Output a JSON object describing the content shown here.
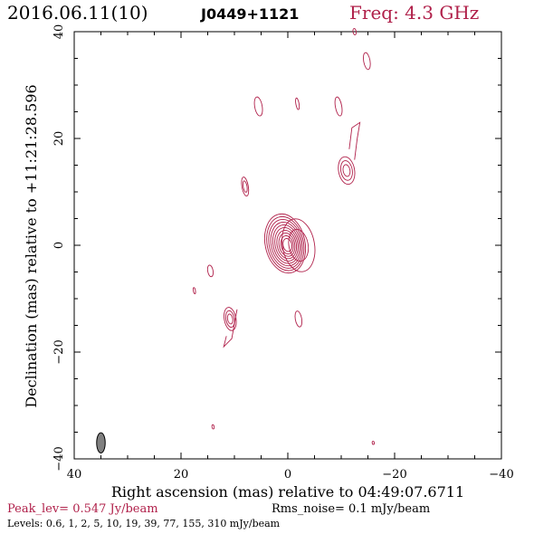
{
  "header": {
    "date": "2016.06.11(10)",
    "source": "J0449+1121",
    "freq": "Freq: 4.3 GHz"
  },
  "footer": {
    "peak": "Peak_lev=  0.547 Jy/beam",
    "rms": "Rms_noise=  0.1 mJy/beam",
    "levels": "Levels: 0.6,   1,   2,   5,  10,  19,  39,  77, 155, 310 mJy/beam"
  },
  "chart_data": {
    "type": "contour",
    "xlabel": "Right ascension (mas) relative to 04:49:07.6711",
    "ylabel": "Declination (mas) relative to +11:21:28.596",
    "xlim": [
      40,
      -40
    ],
    "ylim": [
      -40,
      40
    ],
    "xticks": [
      40,
      20,
      0,
      -20,
      -40
    ],
    "yticks": [
      -40,
      -20,
      0,
      20,
      40
    ],
    "tick_labels_x": [
      "40",
      "20",
      "0",
      "−20",
      "−40"
    ],
    "tick_labels_y": [
      "−40",
      "−20",
      "0",
      "20",
      "40"
    ],
    "levels_mJy": [
      0.6,
      1,
      2,
      5,
      10,
      19,
      39,
      77,
      155,
      310
    ],
    "peak_Jy": 0.547,
    "contour_color": "#b0204a",
    "core": {
      "x": 0,
      "y": 0
    },
    "components": [
      {
        "x": -2,
        "y": 0,
        "rx": 3,
        "ry": 5,
        "rings": 2
      },
      {
        "x": 8,
        "y": 11,
        "rx": 0.6,
        "ry": 1.8,
        "rings": 2
      },
      {
        "x": 5.5,
        "y": 26,
        "rx": 0.7,
        "ry": 1.8,
        "rings": 1
      },
      {
        "x": -1.8,
        "y": 26.5,
        "rx": 0.3,
        "ry": 1.1,
        "rings": 1
      },
      {
        "x": -9.5,
        "y": 26,
        "rx": 0.6,
        "ry": 1.8,
        "rings": 1
      },
      {
        "x": -14.8,
        "y": 34.5,
        "rx": 0.6,
        "ry": 1.6,
        "rings": 1
      },
      {
        "x": -12.5,
        "y": 40,
        "rx": 0.3,
        "ry": 0.6,
        "rings": 1
      },
      {
        "x": -11,
        "y": 14,
        "rx": 1.5,
        "ry": 2.6,
        "rings": 3
      },
      {
        "x": 14.5,
        "y": -4.8,
        "rx": 0.5,
        "ry": 1.1,
        "rings": 1
      },
      {
        "x": 10.8,
        "y": -13.8,
        "rx": 1.1,
        "ry": 2.2,
        "rings": 3
      },
      {
        "x": -2,
        "y": -13.8,
        "rx": 0.6,
        "ry": 1.5,
        "rings": 1
      },
      {
        "x": 17.5,
        "y": -8.5,
        "rx": 0.2,
        "ry": 0.6,
        "rings": 1
      },
      {
        "x": 14,
        "y": -34,
        "rx": 0.2,
        "ry": 0.4,
        "rings": 1
      },
      {
        "x": -16,
        "y": -37,
        "rx": 0.2,
        "ry": 0.3,
        "rings": 1
      }
    ],
    "beam": {
      "x": 35,
      "y": -37,
      "major_mas": 3.8,
      "minor_mas": 1.6,
      "fill": "#808080"
    }
  }
}
